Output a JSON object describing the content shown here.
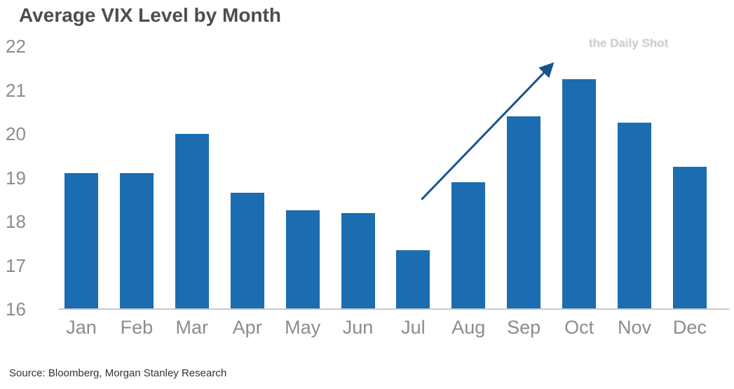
{
  "title": "Average VIX Level by Month",
  "watermark": "the Daily Shot",
  "source": "Source: Bloomberg, Morgan Stanley Research",
  "colors": {
    "bar": "#1b6cb0",
    "arrow": "#17538f",
    "axis_text": "#8c8c8c",
    "title_text": "#4d4d4d",
    "baseline": "#c9c9c9"
  },
  "chart_data": {
    "type": "bar",
    "title": "Average VIX Level by Month",
    "categories": [
      "Jan",
      "Feb",
      "Mar",
      "Apr",
      "May",
      "Jun",
      "Jul",
      "Aug",
      "Sep",
      "Oct",
      "Nov",
      "Dec"
    ],
    "values": [
      19.1,
      19.1,
      20.0,
      18.65,
      18.25,
      18.2,
      17.35,
      18.9,
      20.4,
      21.25,
      20.25,
      19.25
    ],
    "xlabel": "",
    "ylabel": "",
    "ylim": [
      16,
      22
    ],
    "yticks": [
      16,
      17,
      18,
      19,
      20,
      21,
      22
    ],
    "grid": false,
    "legend": "none",
    "annotation": {
      "type": "arrow",
      "note": "upward trend arrow from Jul toward Oct peak",
      "from": {
        "index": 6.15,
        "value": 18.5
      },
      "to": {
        "index": 8.52,
        "value": 21.6
      }
    }
  }
}
